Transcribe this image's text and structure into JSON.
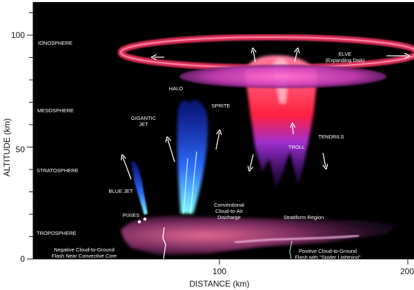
{
  "axes": {
    "ylabel": "ALTITUDE (km)",
    "xlabel": "DISTANCE (km)",
    "yticks": [
      "0",
      "50",
      "100"
    ],
    "xticks": [
      "100",
      "200"
    ],
    "ylim": [
      0,
      114
    ],
    "xlim": [
      0,
      205
    ]
  },
  "layers": {
    "ionosphere": "IONOSPHERE",
    "mesosphere": "MESOSPHERE",
    "stratosphere": "STRATOSPHERE",
    "troposphere": "TROPOSPHERE"
  },
  "phenomena": {
    "elve": "ELVE",
    "elve_sub": "(Expanding Disk)",
    "halo": "HALO",
    "sprite": "SPRITE",
    "gigantic_jet_1": "GIGANTIC",
    "gigantic_jet_2": "JET",
    "tendrils": "TENDRILS",
    "troll": "TROLL",
    "blue_jet": "BLUE JET",
    "pixies": "PIXIES"
  },
  "discharges": {
    "cloud_to_air_1": "Conventional",
    "cloud_to_air_2": "Cloud-to-Air",
    "cloud_to_air_3": "Discharge",
    "stratiform": "Stratiform Region",
    "neg_cg_1": "Negative Cloud-to-Ground",
    "neg_cg_2": "Flash Near Convective Core",
    "pos_cg_1": "Positive Cloud-to-Ground",
    "pos_cg_2": "Flash with \"Spider Lightning\""
  },
  "colors": {
    "background": "#000000",
    "elve": "#e0305a",
    "halo": "#d040c0",
    "sprite": "#ff3050",
    "tendril": "#a030d0",
    "jet": "#2050ff"
  }
}
